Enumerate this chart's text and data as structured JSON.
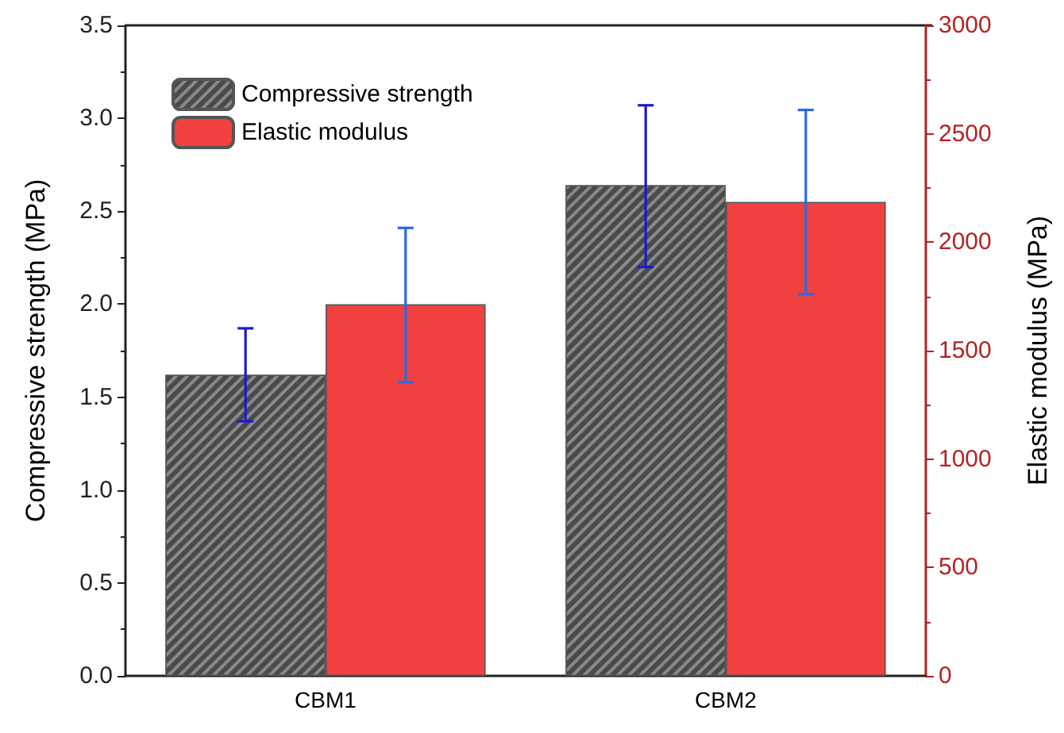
{
  "chart_data": {
    "type": "bar",
    "categories": [
      "CBM1",
      "CBM2"
    ],
    "ylabel": "Compressive strength (MPa)",
    "y2label": "Elastic modulus (MPa)",
    "series": [
      {
        "name": "Compressive strength",
        "color": "#4a4a4a",
        "values": [
          1.62,
          2.64
        ],
        "errors": [
          [
            1.37,
            1.87
          ],
          [
            2.2,
            3.07
          ]
        ]
      },
      {
        "name": "Elastic modulus",
        "color": "#f04040",
        "axis": "y2",
        "values": [
          1714,
          2186
        ],
        "errors": [
          [
            1354,
            2066
          ],
          [
            1760,
            2610
          ]
        ]
      }
    ],
    "ylim": [
      0,
      3.5
    ],
    "yticks": [
      {
        "value": 0,
        "label": "0.0"
      },
      0.5,
      {
        "value": 1,
        "label": "1.0"
      },
      1.5,
      {
        "value": 2,
        "label": "2.0"
      },
      2.5,
      {
        "value": 3,
        "label": "3.0"
      },
      3.5
    ],
    "y2lim": [
      0,
      3000
    ],
    "y2ticks": [
      0,
      500,
      1000,
      1500,
      2000,
      2500,
      3000
    ],
    "grid": false,
    "legend": "top left"
  }
}
